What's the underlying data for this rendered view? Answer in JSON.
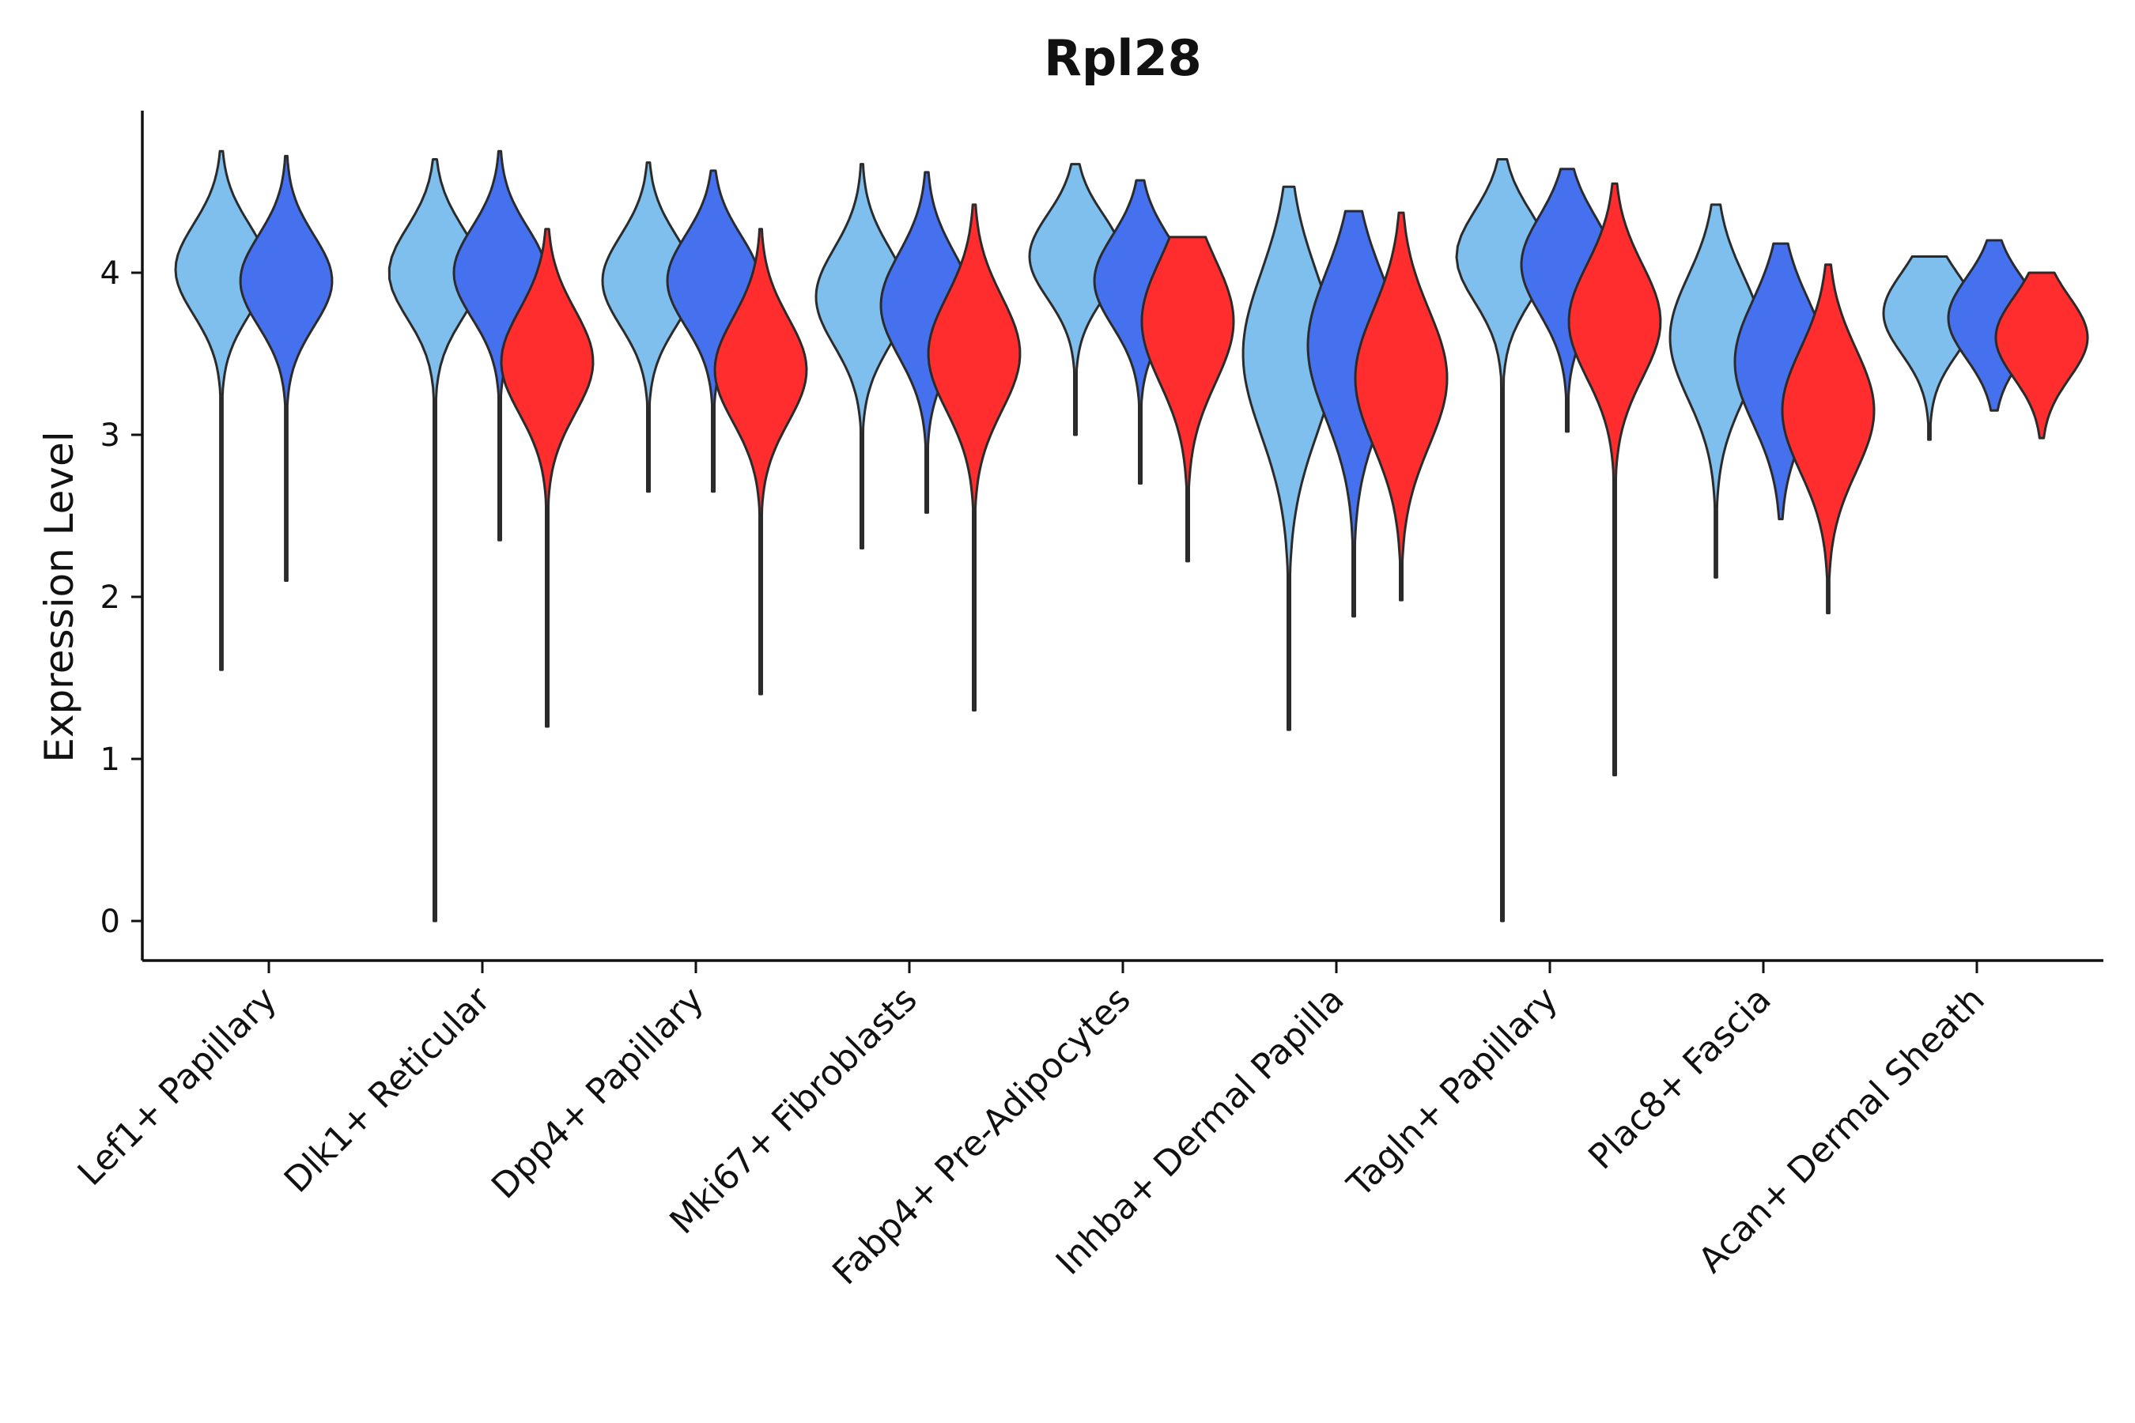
{
  "chart_data": {
    "type": "violin",
    "title": "Rpl28",
    "xlabel": "",
    "ylabel": "Expression Level",
    "ylim": [
      -0.25,
      5.0
    ],
    "yticks": [
      0,
      1,
      2,
      3,
      4
    ],
    "grid": false,
    "legend": "none",
    "series_colors": [
      "#7fbfee",
      "#4570ee",
      "#ff2d2d"
    ],
    "categories": [
      "Lef1+ Papillary",
      "Dlk1+ Reticular",
      "Dpp4+ Papillary",
      "Mki67+ Fibroblasts",
      "Fabp4+ Pre-Adipocytes",
      "Inhba+ Dermal Papilla",
      "Tagln+ Papillary",
      "Plac8+ Fascia",
      "Acan+ Dermal Sheath"
    ],
    "violins": [
      {
        "category": 0,
        "series": 0,
        "min": 1.55,
        "max": 4.75,
        "mode": 4.02,
        "spread": 0.28
      },
      {
        "category": 0,
        "series": 1,
        "min": 2.1,
        "max": 4.72,
        "mode": 3.95,
        "spread": 0.28
      },
      {
        "category": 1,
        "series": 0,
        "min": 0.0,
        "max": 4.7,
        "mode": 4.0,
        "spread": 0.28
      },
      {
        "category": 1,
        "series": 1,
        "min": 2.35,
        "max": 4.75,
        "mode": 4.0,
        "spread": 0.28
      },
      {
        "category": 1,
        "series": 2,
        "min": 1.2,
        "max": 4.27,
        "mode": 3.45,
        "spread": 0.32
      },
      {
        "category": 2,
        "series": 0,
        "min": 2.65,
        "max": 4.68,
        "mode": 3.95,
        "spread": 0.28
      },
      {
        "category": 2,
        "series": 1,
        "min": 2.65,
        "max": 4.63,
        "mode": 3.95,
        "spread": 0.28
      },
      {
        "category": 2,
        "series": 2,
        "min": 1.4,
        "max": 4.27,
        "mode": 3.4,
        "spread": 0.32
      },
      {
        "category": 3,
        "series": 0,
        "min": 2.3,
        "max": 4.67,
        "mode": 3.85,
        "spread": 0.3
      },
      {
        "category": 3,
        "series": 1,
        "min": 2.52,
        "max": 4.62,
        "mode": 3.8,
        "spread": 0.32
      },
      {
        "category": 3,
        "series": 2,
        "min": 1.3,
        "max": 4.42,
        "mode": 3.5,
        "spread": 0.35
      },
      {
        "category": 4,
        "series": 0,
        "min": 3.0,
        "max": 4.67,
        "mode": 4.1,
        "spread": 0.26
      },
      {
        "category": 4,
        "series": 1,
        "min": 2.7,
        "max": 4.57,
        "mode": 3.95,
        "spread": 0.28
      },
      {
        "category": 4,
        "series": 2,
        "min": 2.22,
        "max": 4.22,
        "mode": 3.7,
        "spread": 0.38
      },
      {
        "category": 5,
        "series": 0,
        "min": 1.18,
        "max": 4.53,
        "mode": 3.5,
        "spread": 0.5
      },
      {
        "category": 5,
        "series": 1,
        "min": 1.88,
        "max": 4.38,
        "mode": 3.55,
        "spread": 0.45
      },
      {
        "category": 5,
        "series": 2,
        "min": 1.98,
        "max": 4.37,
        "mode": 3.35,
        "spread": 0.42
      },
      {
        "category": 6,
        "series": 0,
        "min": 0.0,
        "max": 4.7,
        "mode": 4.1,
        "spread": 0.28
      },
      {
        "category": 6,
        "series": 1,
        "min": 3.02,
        "max": 4.64,
        "mode": 4.05,
        "spread": 0.3
      },
      {
        "category": 6,
        "series": 2,
        "min": 0.9,
        "max": 4.55,
        "mode": 3.7,
        "spread": 0.35
      },
      {
        "category": 7,
        "series": 0,
        "min": 2.12,
        "max": 4.42,
        "mode": 3.6,
        "spread": 0.38
      },
      {
        "category": 7,
        "series": 1,
        "min": 2.48,
        "max": 4.18,
        "mode": 3.45,
        "spread": 0.38
      },
      {
        "category": 7,
        "series": 2,
        "min": 1.9,
        "max": 4.05,
        "mode": 3.15,
        "spread": 0.38
      },
      {
        "category": 8,
        "series": 0,
        "min": 2.97,
        "max": 4.1,
        "mode": 3.75,
        "spread": 0.25
      },
      {
        "category": 8,
        "series": 1,
        "min": 3.15,
        "max": 4.2,
        "mode": 3.72,
        "spread": 0.25
      },
      {
        "category": 8,
        "series": 2,
        "min": 2.98,
        "max": 4.0,
        "mode": 3.6,
        "spread": 0.25
      }
    ]
  }
}
